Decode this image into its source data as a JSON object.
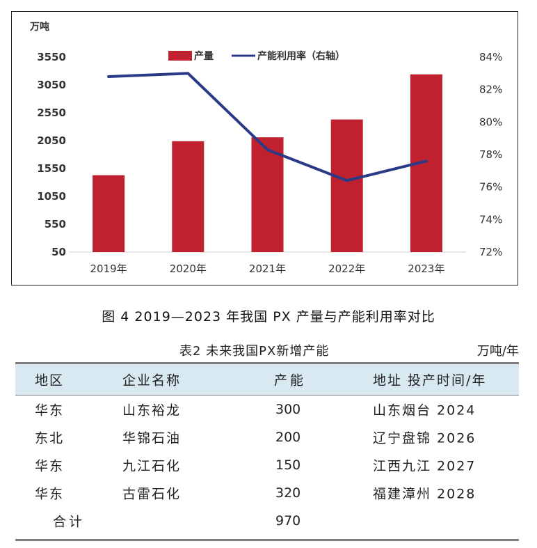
{
  "chart_data": {
    "type": "bar",
    "categories": [
      "2019年",
      "2020年",
      "2021年",
      "2022年",
      "2023年"
    ],
    "series": [
      {
        "name": "产量",
        "kind": "bar",
        "axis": "left",
        "color": "#c0212e",
        "values": [
          1430,
          2040,
          2110,
          2430,
          3240
        ]
      },
      {
        "name": "产能利用率（右轴）",
        "kind": "line",
        "axis": "right",
        "color": "#2b3a87",
        "values": [
          82.8,
          83.0,
          78.3,
          76.4,
          77.6
        ]
      }
    ],
    "left_axis": {
      "unit_label": "万吨",
      "ticks": [
        "3550",
        "3050",
        "2550",
        "2050",
        "1550",
        "1050",
        "550",
        "50"
      ],
      "range": [
        50,
        3550
      ]
    },
    "right_axis": {
      "ticks": [
        "84%",
        "82%",
        "80%",
        "78%",
        "76%",
        "74%",
        "72%"
      ],
      "range": [
        72,
        84
      ]
    },
    "legend_placement": "top-center",
    "grid": false
  },
  "figure_caption": "图 4   2019—2023 年我国 PX 产量与产能利用率对比",
  "table": {
    "title": "表2 未来我国PX新增产能",
    "unit": "万吨/年",
    "headers": [
      "地区",
      "企业名称",
      "产能",
      "地址 投产时间/年"
    ],
    "rows": [
      [
        "华东",
        "山东裕龙",
        "300",
        "山东烟台 2024"
      ],
      [
        "东北",
        "华锦石油",
        "200",
        "辽宁盘锦 2026"
      ],
      [
        "华东",
        "九江石化",
        "150",
        "江西九江 2027"
      ],
      [
        "华东",
        "古雷石化",
        "320",
        "福建漳州 2028"
      ]
    ],
    "total": {
      "label": "合计",
      "value": "970"
    }
  }
}
